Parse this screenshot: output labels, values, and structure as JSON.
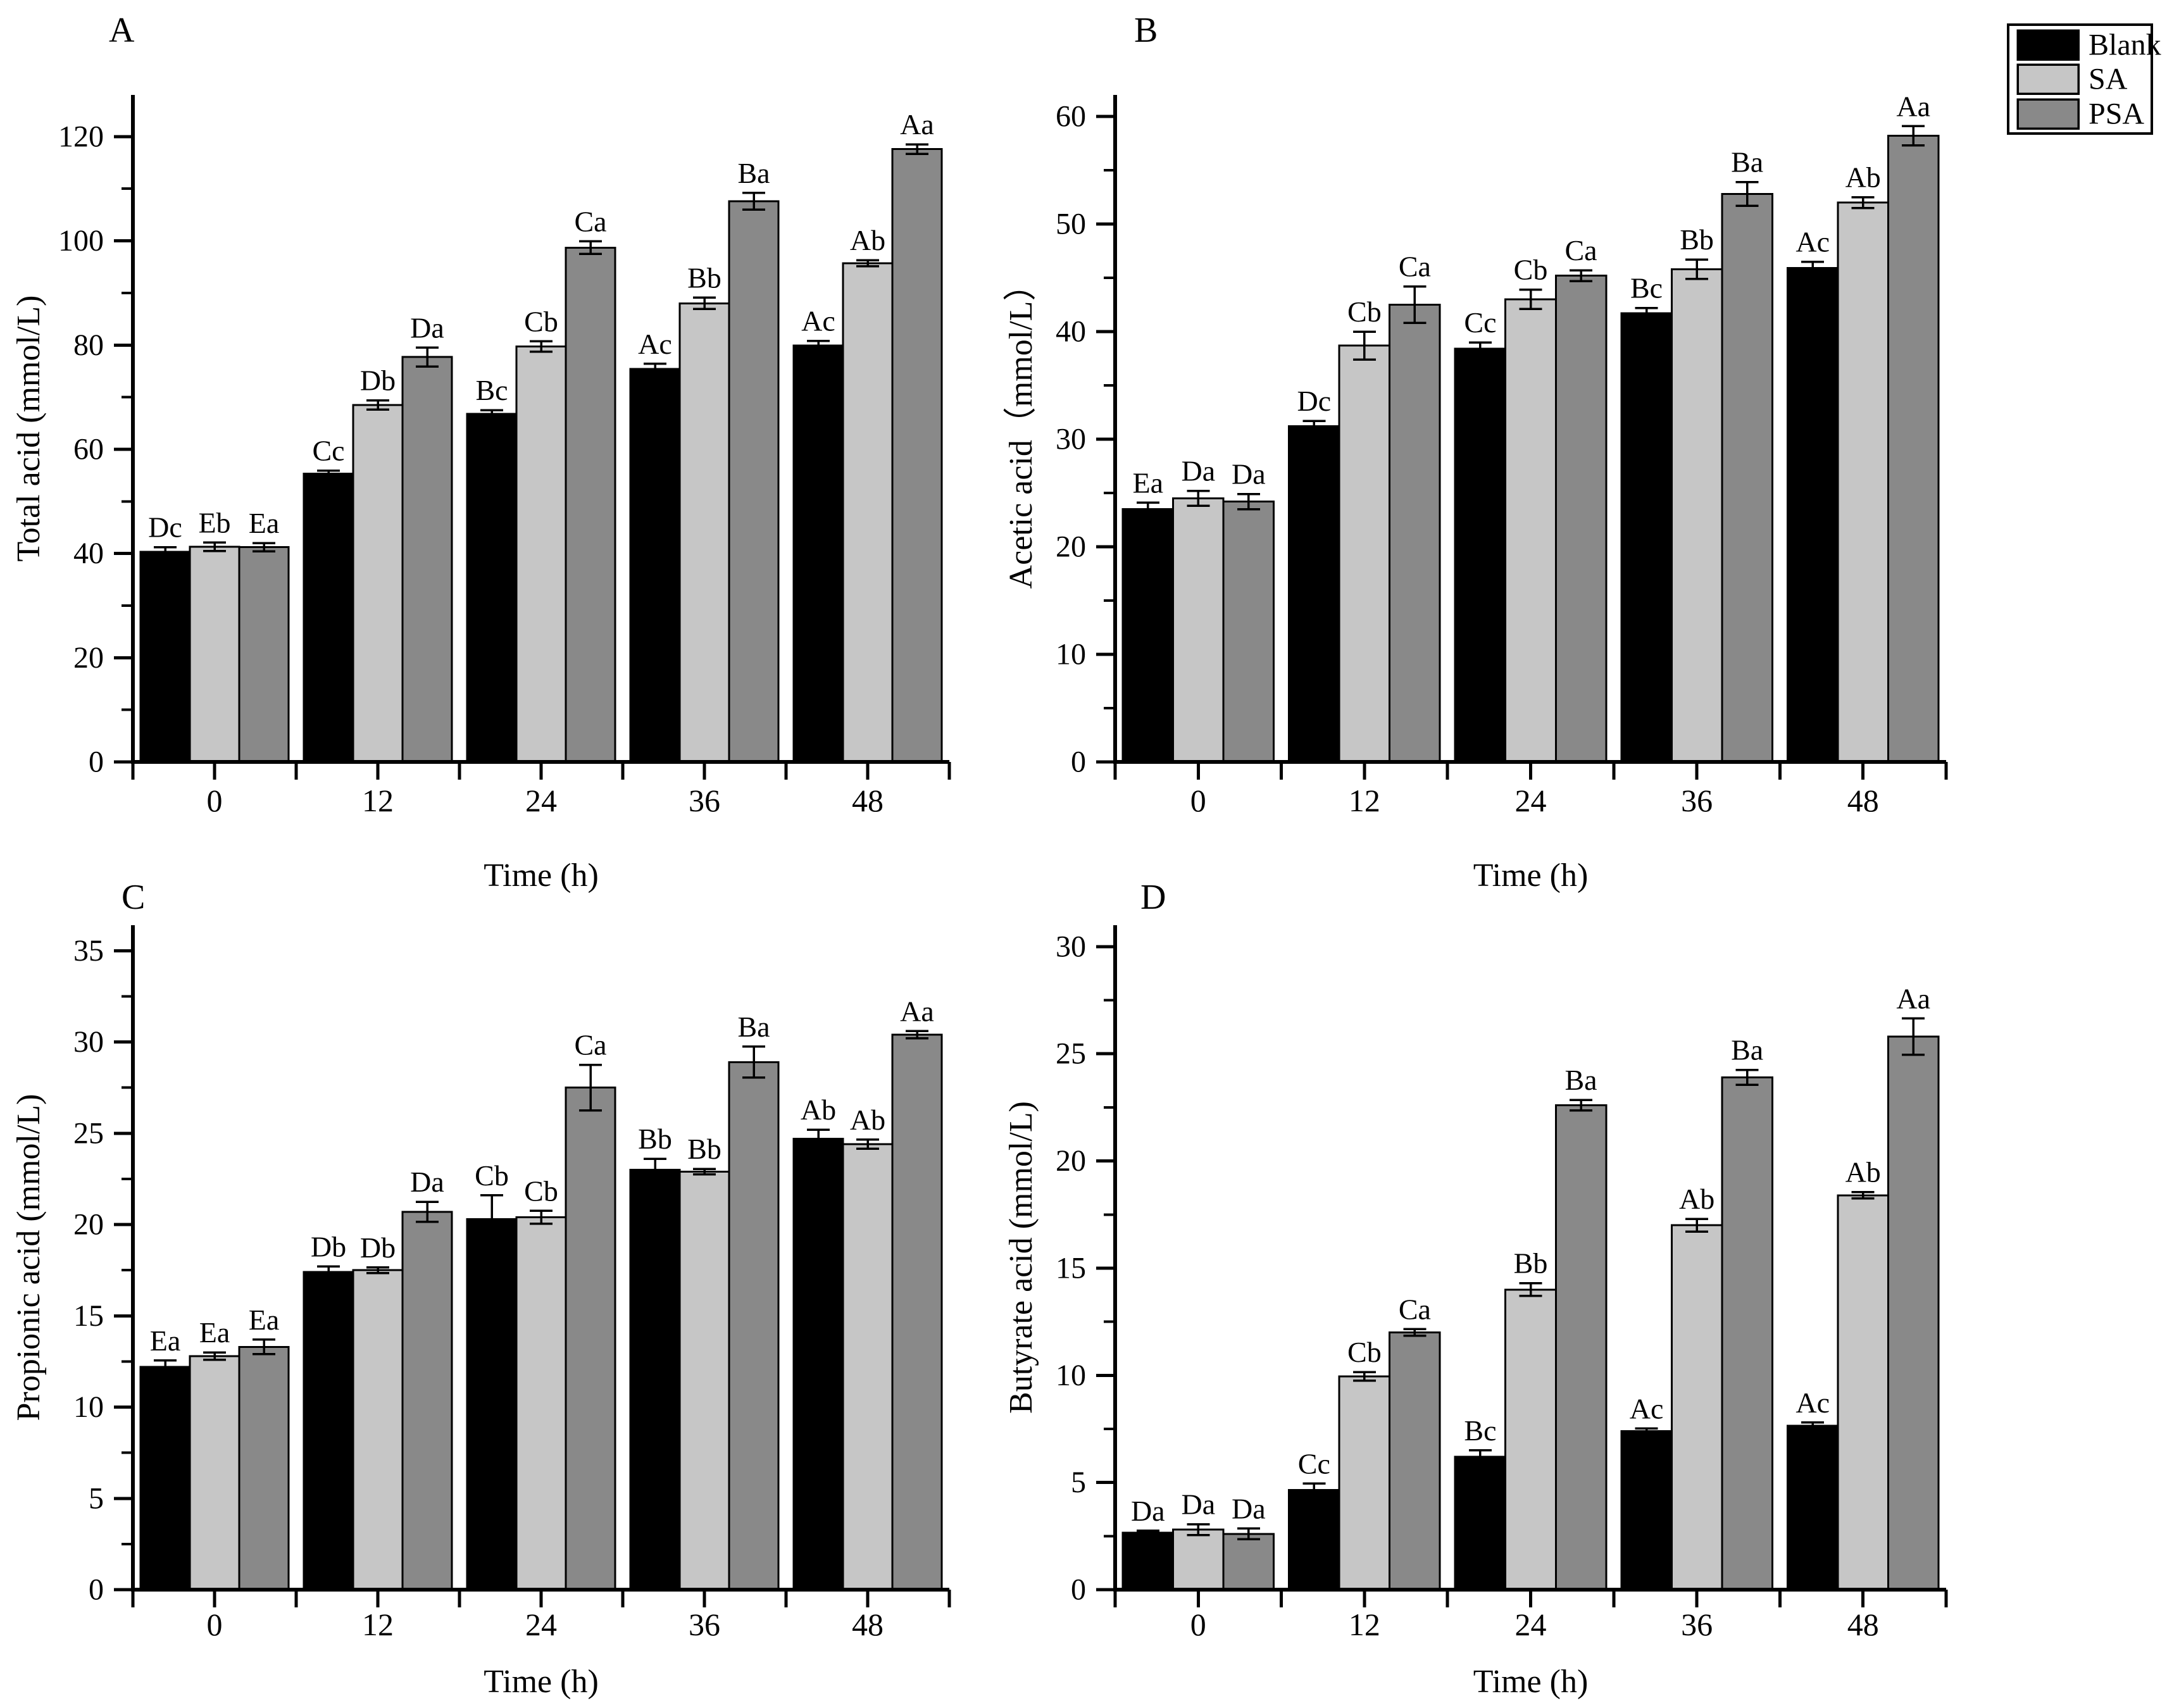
{
  "figure": {
    "background": "#ffffff",
    "ink_color": "#000000"
  },
  "legend": {
    "items": [
      {
        "label": "Blank",
        "color": "#000000"
      },
      {
        "label": "SA",
        "color": "#c6c6c6"
      },
      {
        "label": "PSA",
        "color": "#898989"
      }
    ]
  },
  "chart_data": [
    {
      "type": "bar",
      "panel_label": "A",
      "ylabel": "Total acid (mmol/L)",
      "xlabel": "Time (h)",
      "categories": [
        "0",
        "12",
        "24",
        "36",
        "48"
      ],
      "ylim": [
        0,
        128
      ],
      "ytick_step": 20,
      "ymax_tick": 120,
      "yminor_step": 10,
      "legend_position": "figure-top-right",
      "grid": false,
      "series": [
        {
          "name": "Blank",
          "values": [
            40.3,
            55.3,
            66.8,
            75.4,
            79.9
          ],
          "errors": [
            0.9,
            0.6,
            0.7,
            1.0,
            0.9
          ],
          "sig_labels": [
            "Dc",
            "Cc",
            "Bc",
            "Ac",
            "Ac"
          ]
        },
        {
          "name": "SA",
          "values": [
            41.3,
            68.5,
            79.7,
            88.0,
            95.7
          ],
          "errors": [
            0.8,
            0.9,
            1.0,
            1.1,
            0.6
          ],
          "sig_labels": [
            "Eb",
            "Db",
            "Cb",
            "Bb",
            "Ab"
          ]
        },
        {
          "name": "PSA",
          "values": [
            41.2,
            77.7,
            98.7,
            107.6,
            117.6
          ],
          "errors": [
            0.8,
            1.8,
            1.2,
            1.6,
            0.9
          ],
          "sig_labels": [
            "Ea",
            "Da",
            "Ca",
            "Ba",
            "Aa"
          ]
        }
      ]
    },
    {
      "type": "bar",
      "panel_label": "B",
      "ylabel": "Acetic acid（mmol/L）",
      "xlabel": "Time (h)",
      "categories": [
        "0",
        "12",
        "24",
        "36",
        "48"
      ],
      "ylim": [
        0,
        62
      ],
      "ytick_step": 10,
      "ymax_tick": 60,
      "yminor_step": 5,
      "grid": false,
      "series": [
        {
          "name": "Blank",
          "values": [
            23.5,
            31.2,
            38.4,
            41.7,
            45.9
          ],
          "errors": [
            0.6,
            0.5,
            0.6,
            0.5,
            0.6
          ],
          "sig_labels": [
            "Ea",
            "Dc",
            "Cc",
            "Bc",
            "Ac"
          ]
        },
        {
          "name": "SA",
          "values": [
            24.5,
            38.7,
            43.0,
            45.8,
            52.0
          ],
          "errors": [
            0.7,
            1.3,
            0.9,
            0.9,
            0.5
          ],
          "sig_labels": [
            "Da",
            "Cb",
            "Cb",
            "Bb",
            "Ab"
          ]
        },
        {
          "name": "PSA",
          "values": [
            24.2,
            42.5,
            45.2,
            52.8,
            58.2
          ],
          "errors": [
            0.7,
            1.7,
            0.5,
            1.1,
            0.9
          ],
          "sig_labels": [
            "Da",
            "Ca",
            "Ca",
            "Ba",
            "Aa"
          ]
        }
      ]
    },
    {
      "type": "bar",
      "panel_label": "C",
      "ylabel": "Propionic acid (mmol/L)",
      "xlabel": "Time (h)",
      "categories": [
        "0",
        "12",
        "24",
        "36",
        "48"
      ],
      "ylim": [
        0,
        36.4
      ],
      "ytick_step": 5,
      "ymax_tick": 35,
      "yminor_step": 2.5,
      "grid": false,
      "series": [
        {
          "name": "Blank",
          "values": [
            12.2,
            17.4,
            20.3,
            23.0,
            24.7
          ],
          "errors": [
            0.35,
            0.3,
            1.3,
            0.6,
            0.5
          ],
          "sig_labels": [
            "Ea",
            "Db",
            "Cb",
            "Bb",
            "Ab"
          ]
        },
        {
          "name": "SA",
          "values": [
            12.8,
            17.5,
            20.4,
            22.9,
            24.4
          ],
          "errors": [
            0.2,
            0.15,
            0.35,
            0.15,
            0.25
          ],
          "sig_labels": [
            "Ea",
            "Db",
            "Cb",
            "Bb",
            "Ab"
          ]
        },
        {
          "name": "PSA",
          "values": [
            13.3,
            20.7,
            27.5,
            28.9,
            30.4
          ],
          "errors": [
            0.4,
            0.55,
            1.25,
            0.85,
            0.2
          ],
          "sig_labels": [
            "Ea",
            "Da",
            "Ca",
            "Ba",
            "Aa"
          ]
        }
      ]
    },
    {
      "type": "bar",
      "panel_label": "D",
      "ylabel": "Butyrate acid (mmol/L)",
      "xlabel": "Time (h)",
      "categories": [
        "0",
        "12",
        "24",
        "36",
        "48"
      ],
      "ylim": [
        0,
        31
      ],
      "ytick_step": 5,
      "ymax_tick": 30,
      "yminor_step": 2.5,
      "grid": false,
      "series": [
        {
          "name": "Blank",
          "values": [
            2.65,
            4.65,
            6.2,
            7.4,
            7.65
          ],
          "errors": [
            0.1,
            0.3,
            0.3,
            0.12,
            0.15
          ],
          "sig_labels": [
            "Da",
            "Cc",
            "Bc",
            "Ac",
            "Ac"
          ]
        },
        {
          "name": "SA",
          "values": [
            2.8,
            9.95,
            14.0,
            17.0,
            18.4
          ],
          "errors": [
            0.25,
            0.2,
            0.3,
            0.3,
            0.15
          ],
          "sig_labels": [
            "Da",
            "Cb",
            "Bb",
            "Ab",
            "Ab"
          ]
        },
        {
          "name": "PSA",
          "values": [
            2.6,
            12.0,
            22.6,
            23.9,
            25.8
          ],
          "errors": [
            0.25,
            0.15,
            0.25,
            0.35,
            0.85
          ],
          "sig_labels": [
            "Da",
            "Ca",
            "Ba",
            "Ba",
            "Aa"
          ]
        }
      ]
    }
  ]
}
